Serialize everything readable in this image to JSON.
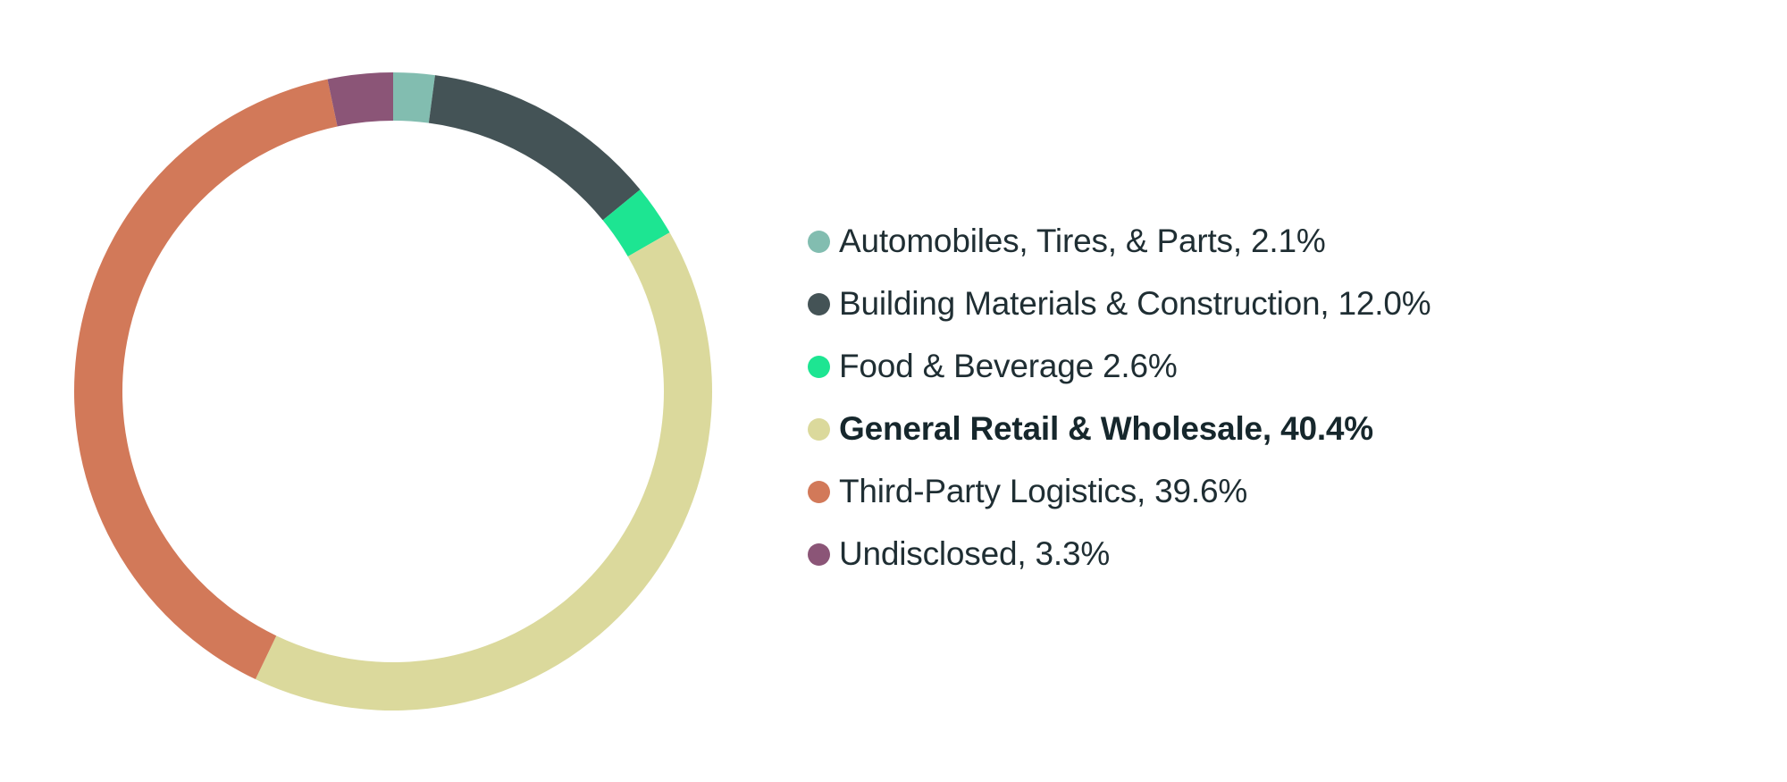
{
  "chart_data": {
    "type": "pie",
    "variant": "donut",
    "title": "",
    "legend_position": "right",
    "highlighted": "General Retail & Wholesale",
    "slices": [
      {
        "label": "Automobiles, Tires, & Parts, 2.1%",
        "name": "Automobiles, Tires, & Parts",
        "value": 2.1,
        "color": "#82bdb0"
      },
      {
        "label": "Building Materials & Construction, 12.0%",
        "name": "Building Materials & Construction",
        "value": 12.0,
        "color": "#445356"
      },
      {
        "label": "Food & Beverage 2.6%",
        "name": "Food & Beverage",
        "value": 2.6,
        "color": "#1de592"
      },
      {
        "label": "General Retail & Wholesale, 40.4%",
        "name": "General Retail & Wholesale",
        "value": 40.4,
        "color": "#dbd99c"
      },
      {
        "label": "Third-Party Logistics, 39.6%",
        "name": "Third-Party Logistics",
        "value": 39.6,
        "color": "#d27959"
      },
      {
        "label": "Undisclosed, 3.3%",
        "name": "Undisclosed",
        "value": 3.3,
        "color": "#8b5577"
      }
    ]
  }
}
